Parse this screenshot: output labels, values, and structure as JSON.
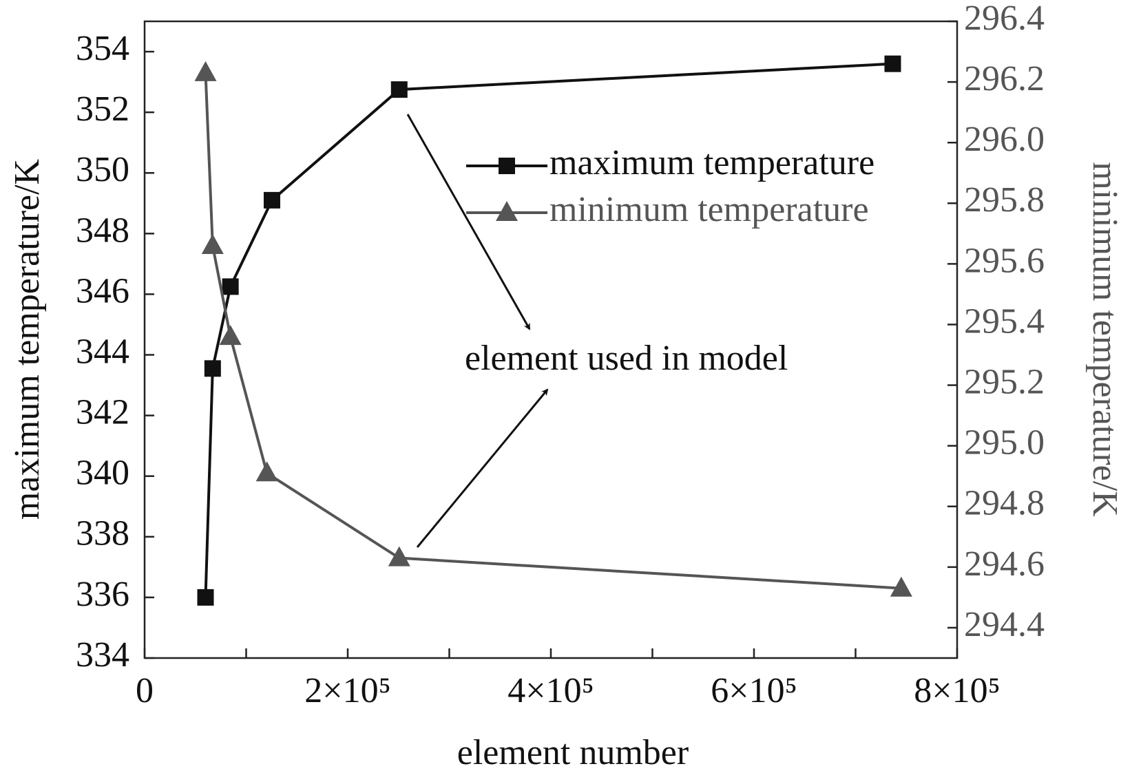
{
  "chart_data": {
    "type": "line",
    "x_label": "element number",
    "y_label": "maximum temperature/K",
    "y2_label": "minimum temperature/K",
    "annotation": "element used in model",
    "xlim": [
      0,
      800000
    ],
    "xticks": [
      0,
      {
        "value": 200000,
        "label": "2×10⁵"
      },
      {
        "value": 400000,
        "label": "4×10⁵"
      },
      {
        "value": 600000,
        "label": "6×10⁵"
      },
      {
        "value": 800000,
        "label": "8×10⁵"
      }
    ],
    "minor_xticks": [
      100000,
      300000,
      500000,
      700000
    ],
    "ylim": [
      334,
      355
    ],
    "yticks": [
      334,
      336,
      338,
      340,
      342,
      344,
      346,
      348,
      350,
      352,
      354
    ],
    "y2lim": [
      294.3,
      296.4
    ],
    "y2ticks": [
      294.4,
      294.6,
      294.8,
      {
        "value": 295,
        "label": "295.0"
      },
      295.2,
      295.4,
      295.6,
      295.8,
      {
        "value": 296,
        "label": "296.0"
      },
      296.2,
      296.4
    ],
    "series": [
      {
        "name": "maximum temperature",
        "color": "#111111",
        "marker": "square",
        "x": [
          60000,
          67000,
          84500,
          125400,
          250700,
          736600
        ],
        "values": [
          336,
          343.55,
          346.25,
          349.1,
          352.75,
          353.6
        ]
      },
      {
        "name": "minimum temperature",
        "color": "#555555",
        "marker": "triangle",
        "axis": "y2",
        "x": [
          60000,
          67000,
          84500,
          120400,
          250700,
          745000
        ],
        "values": [
          296.23,
          295.66,
          295.36,
          294.91,
          294.63,
          294.53
        ]
      }
    ]
  }
}
